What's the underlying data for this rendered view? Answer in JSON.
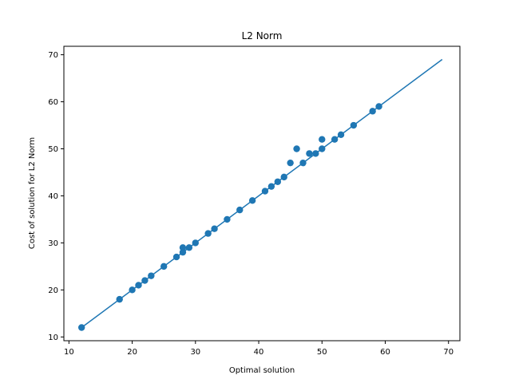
{
  "chart_data": {
    "type": "scatter",
    "title": "L2 Norm",
    "xlabel": "Optimal solution",
    "ylabel": "Cost of solution for L2 Norm",
    "xlim": [
      9.2,
      71.8
    ],
    "ylim": [
      9.2,
      71.8
    ],
    "xticks": [
      10,
      20,
      30,
      40,
      50,
      60,
      70
    ],
    "yticks": [
      10,
      20,
      30,
      40,
      50,
      60,
      70
    ],
    "grid": false,
    "legend": "none",
    "series": [
      {
        "type": "line",
        "color": "#1f77b4",
        "x": [
          12,
          69
        ],
        "y": [
          12,
          69
        ]
      },
      {
        "type": "scatter",
        "color": "#1f77b4",
        "points": [
          [
            12,
            12
          ],
          [
            18,
            18
          ],
          [
            20,
            20
          ],
          [
            21,
            21
          ],
          [
            22,
            22
          ],
          [
            23,
            23
          ],
          [
            25,
            25
          ],
          [
            27,
            27
          ],
          [
            28,
            28
          ],
          [
            28,
            29
          ],
          [
            29,
            29
          ],
          [
            30,
            30
          ],
          [
            32,
            32
          ],
          [
            33,
            33
          ],
          [
            35,
            35
          ],
          [
            37,
            37
          ],
          [
            39,
            39
          ],
          [
            41,
            41
          ],
          [
            42,
            42
          ],
          [
            43,
            43
          ],
          [
            44,
            44
          ],
          [
            45,
            47
          ],
          [
            46,
            50
          ],
          [
            47,
            47
          ],
          [
            48,
            49
          ],
          [
            49,
            49
          ],
          [
            50,
            50
          ],
          [
            50,
            52
          ],
          [
            52,
            52
          ],
          [
            53,
            53
          ],
          [
            55,
            55
          ],
          [
            58,
            58
          ],
          [
            59,
            59
          ]
        ]
      }
    ]
  }
}
